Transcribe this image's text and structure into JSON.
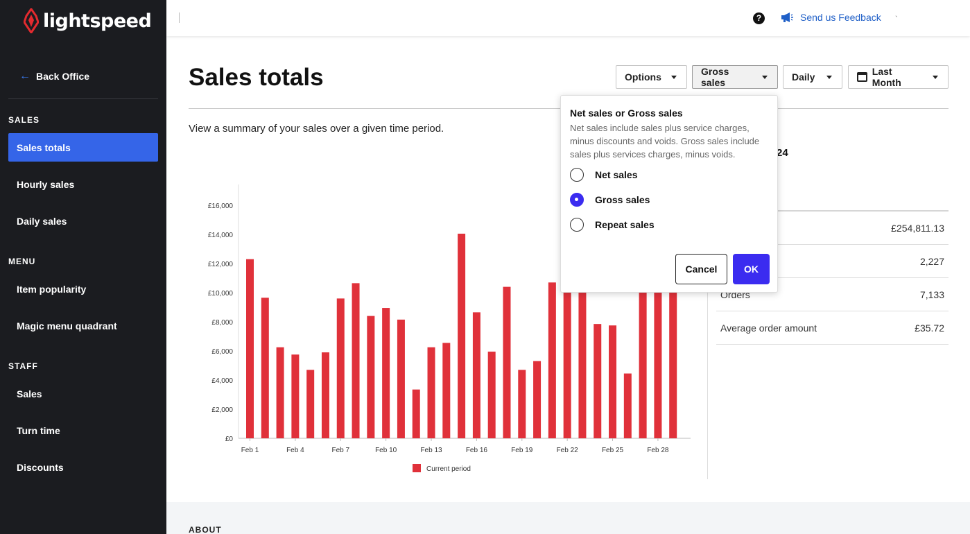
{
  "brand": {
    "name": "lightspeed",
    "color": "#e42a2f"
  },
  "sidebar": {
    "back_label": "Back Office",
    "sections": [
      {
        "heading": "SALES",
        "items": [
          "Sales totals",
          "Hourly sales",
          "Daily sales"
        ]
      },
      {
        "heading": "MENU",
        "items": [
          "Item popularity",
          "Magic menu quadrant"
        ]
      },
      {
        "heading": "STAFF",
        "items": [
          "Sales",
          "Turn time",
          "Discounts"
        ]
      }
    ],
    "active_item": "Sales totals",
    "active_color": "#3565e8"
  },
  "topbar": {
    "help_glyph": "?",
    "feedback_label": "Send us Feedback",
    "tick": "`"
  },
  "page": {
    "title": "Sales totals",
    "subtitle": "View a summary of your sales over a given time period."
  },
  "toolbar": {
    "options": "Options",
    "sales_type": "Gross sales",
    "interval": "Daily",
    "range": "Last Month"
  },
  "popover": {
    "title": "Net sales or Gross sales",
    "description": "Net sales include sales plus service charges, minus discounts and voids. Gross sales include sales plus services charges, minus voids.",
    "options": [
      "Net sales",
      "Gross sales",
      "Repeat sales"
    ],
    "selected": "Gross sales",
    "cancel": "Cancel",
    "ok": "OK",
    "accent": "#3b2cf0"
  },
  "summary": {
    "partial_date": "24",
    "rows": [
      {
        "label": "",
        "value": "£254,811.13"
      },
      {
        "label": "",
        "value": "2,227"
      },
      {
        "label": "Orders",
        "value": "7,133"
      },
      {
        "label": "Average order amount",
        "value": "£35.72"
      }
    ]
  },
  "chart_data": {
    "type": "bar",
    "categories": [
      "Feb 1",
      "Feb 2",
      "Feb 3",
      "Feb 4",
      "Feb 5",
      "Feb 6",
      "Feb 7",
      "Feb 8",
      "Feb 9",
      "Feb 10",
      "Feb 11",
      "Feb 12",
      "Feb 13",
      "Feb 14",
      "Feb 15",
      "Feb 16",
      "Feb 17",
      "Feb 18",
      "Feb 19",
      "Feb 20",
      "Feb 21",
      "Feb 22",
      "Feb 23",
      "Feb 24",
      "Feb 25",
      "Feb 26",
      "Feb 27",
      "Feb 28",
      "Feb 29"
    ],
    "tick_labels": [
      "Feb 1",
      "Feb 4",
      "Feb 7",
      "Feb 10",
      "Feb 13",
      "Feb 16",
      "Feb 19",
      "Feb 22",
      "Feb 25",
      "Feb 28"
    ],
    "series": [
      {
        "name": "Current period",
        "color": "#e0313a",
        "values": [
          12300,
          9650,
          6250,
          5750,
          4700,
          5900,
          9600,
          10650,
          8400,
          8950,
          8150,
          3350,
          6250,
          6550,
          14050,
          8650,
          5950,
          10400,
          4700,
          5300,
          10700,
          10000,
          10000,
          7850,
          7750,
          4450,
          10000,
          10000,
          10000
        ]
      }
    ],
    "y_ticks": [
      "£0",
      "£2,000",
      "£4,000",
      "£6,000",
      "£8,000",
      "£10,000",
      "£12,000",
      "£14,000",
      "£16,000"
    ],
    "ylim": [
      0,
      16000
    ],
    "legend": "bottom-center",
    "grid": false
  },
  "footer": {
    "heading": "ABOUT"
  }
}
